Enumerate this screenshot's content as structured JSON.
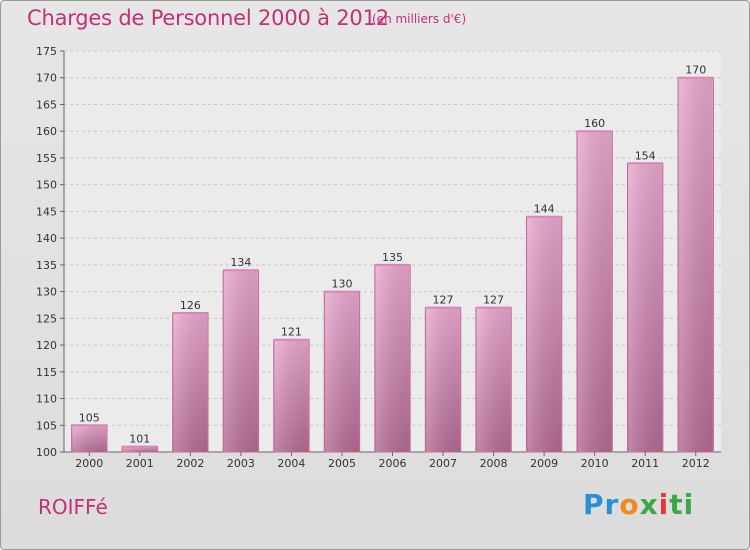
{
  "header": {
    "title": "Charges de Personnel 2000 à 2012",
    "unit_note": "(en milliers d'€)"
  },
  "footer": {
    "commune": "ROIFFé",
    "logo": {
      "text": "Proxiti",
      "parts": [
        "Pr",
        "o",
        "x",
        "i",
        "ti"
      ]
    }
  },
  "colors": {
    "accent": "#c42f7a",
    "bar_light": "#e6a3c9",
    "bar_dark": "#b56c96"
  },
  "chart_data": {
    "type": "bar",
    "title": "Charges de Personnel 2000 à 2012",
    "subtitle": "(en milliers d'€)",
    "categories": [
      "2000",
      "2001",
      "2002",
      "2003",
      "2004",
      "2005",
      "2006",
      "2007",
      "2008",
      "2009",
      "2010",
      "2011",
      "2012"
    ],
    "values": [
      105,
      101,
      126,
      134,
      121,
      130,
      135,
      127,
      127,
      144,
      160,
      154,
      170
    ],
    "ylim": [
      100,
      175
    ],
    "yticks": [
      100,
      105,
      110,
      115,
      120,
      125,
      130,
      135,
      140,
      145,
      150,
      155,
      160,
      165,
      170,
      175
    ],
    "grid": true,
    "xlabel": "",
    "ylabel": ""
  }
}
